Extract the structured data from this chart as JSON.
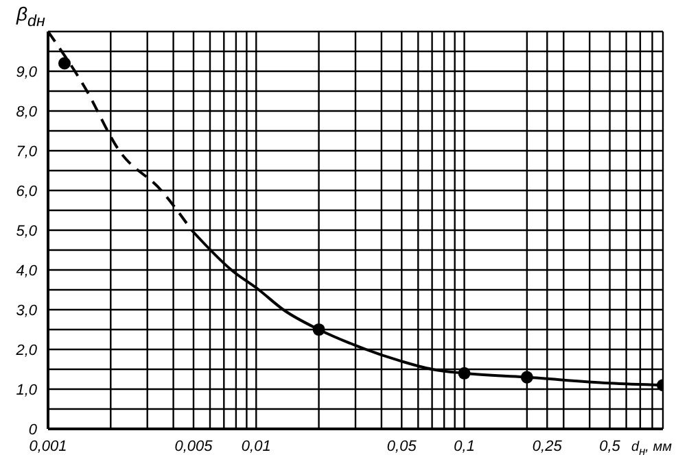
{
  "chart_data": {
    "type": "line",
    "xlabel": "d$_{н}$, мм",
    "ylabel": "β$_{dн}$",
    "log": "x",
    "grid": true,
    "xlim": [
      0.001,
      0.9
    ],
    "ylim": [
      0,
      10
    ],
    "xticks": [
      {
        "value": 0.001,
        "label": "0,001"
      },
      {
        "value": 0.002,
        "label": null
      },
      {
        "value": 0.003,
        "label": null
      },
      {
        "value": 0.004,
        "label": null
      },
      {
        "value": 0.005,
        "label": "0,005"
      },
      {
        "value": 0.006,
        "label": null
      },
      {
        "value": 0.007,
        "label": null
      },
      {
        "value": 0.008,
        "label": null
      },
      {
        "value": 0.009,
        "label": null
      },
      {
        "value": 0.01,
        "label": "0,01"
      },
      {
        "value": 0.02,
        "label": null
      },
      {
        "value": 0.03,
        "label": null
      },
      {
        "value": 0.04,
        "label": null
      },
      {
        "value": 0.05,
        "label": "0,05"
      },
      {
        "value": 0.06,
        "label": null
      },
      {
        "value": 0.07,
        "label": null
      },
      {
        "value": 0.08,
        "label": null
      },
      {
        "value": 0.09,
        "label": null
      },
      {
        "value": 0.1,
        "label": "0,1"
      },
      {
        "value": 0.2,
        "label": null
      },
      {
        "value": 0.25,
        "label": "0,25"
      },
      {
        "value": 0.3,
        "label": null
      },
      {
        "value": 0.4,
        "label": null
      },
      {
        "value": 0.5,
        "label": "0,5"
      },
      {
        "value": 0.6,
        "label": null
      },
      {
        "value": 0.7,
        "label": null
      },
      {
        "value": 0.8,
        "label": null
      },
      {
        "value": 0.9,
        "label": null
      }
    ],
    "yticks": [
      0,
      {
        "value": 0.5,
        "label": null
      },
      {
        "value": 1,
        "label": "1,0"
      },
      {
        "value": 1.5,
        "label": null
      },
      {
        "value": 2,
        "label": "2,0"
      },
      {
        "value": 2.5,
        "label": null
      },
      {
        "value": 3,
        "label": "3,0"
      },
      {
        "value": 3.5,
        "label": null
      },
      {
        "value": 4,
        "label": "4,0"
      },
      {
        "value": 4.5,
        "label": null
      },
      {
        "value": 5,
        "label": "5,0"
      },
      {
        "value": 5.5,
        "label": null
      },
      {
        "value": 6,
        "label": "6,0"
      },
      {
        "value": 6.5,
        "label": null
      },
      {
        "value": 7,
        "label": "7,0"
      },
      {
        "value": 7.5,
        "label": null
      },
      {
        "value": 8,
        "label": "8,0"
      },
      {
        "value": 8.5,
        "label": null
      },
      {
        "value": 9,
        "label": "9,0"
      },
      {
        "value": 9.5,
        "label": null
      },
      {
        "value": 10,
        "label": null
      }
    ],
    "series": [
      {
        "line_style": "dashed",
        "marker": "none",
        "color": "#000000",
        "x": [
          0.001,
          0.0015,
          0.0022,
          0.0035,
          0.0049
        ],
        "values": [
          10,
          8.6,
          7,
          6,
          5
        ]
      },
      {
        "line_style": "solid",
        "marker": "none",
        "color": "#000000",
        "x": [
          0.0049,
          0.0076,
          0.0103,
          0.0135,
          0.02,
          0.03,
          0.05,
          0.07,
          0.1,
          0.2,
          0.5,
          0.9
        ],
        "values": [
          5,
          4,
          3.5,
          3,
          2.5,
          2.1,
          1.7,
          1.5,
          1.4,
          1.3,
          1.15,
          1.1
        ]
      },
      {
        "type": "scatter",
        "marker": "circle",
        "color": "#000000",
        "x": [
          0.0012,
          0.02,
          0.1,
          0.2,
          0.9
        ],
        "values": [
          9.2,
          2.5,
          1.4,
          1.3,
          1.1
        ]
      }
    ]
  }
}
